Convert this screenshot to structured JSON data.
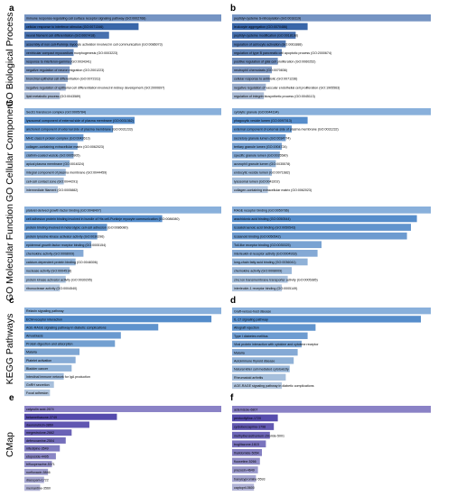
{
  "side_labels": {
    "bp": "GO Biological Process",
    "cc": "GO Cellular Component",
    "mf": "GO Molecular Function",
    "kegg": "KEGG Pathways",
    "cmap": "CMap"
  },
  "colors": {
    "bp": "#2b5ba3",
    "cc": "#4a86c8",
    "mf": "#4a86c8",
    "kegg": "#4a86c8",
    "cmap": "#4b3fa8"
  },
  "chart_data": [
    {
      "panel": "a",
      "type": "bar",
      "group": "bp",
      "categories": [
        "immune response-regulating cell surface receptor signaling pathway (GO:0002768)",
        "cellular response to interferon stimulus (GO:0071346)",
        "neural filament cell differentiation (GO:0007418)",
        "assembly of non cell-Purkinje myocyte activation involved in cell communication (GO:0086073)",
        "ventricular compact myocardium morphogenesis (GO:0003223)",
        "response to interferon-gamma (GO:0034341)",
        "negative regulation of neuron migration (GO:2001223)",
        "bronchial epithelial cell differentiation (GO:0072311)",
        "negative regulation of epithelial cell differentiation involved in kidney development (GO:2000697)",
        "lipid metabolic process (GO:0043589)"
      ],
      "values": [
        1.0,
        0.58,
        0.43,
        0.27,
        0.25,
        0.24,
        0.23,
        0.22,
        0.21,
        0.18
      ]
    },
    {
      "panel": "b",
      "type": "bar",
      "group": "bp",
      "categories": [
        "peptidyl-cysteine S-nitrosylation (GO:0018119)",
        "leukocyte aggregation (GO:0070486)",
        "peptidyl-cysteine modification (GO:0018198)",
        "regulation of astrocyte activation (GO:0061888)",
        "regulation of type B pancreatic cell apoptotic process (GO:2000674)",
        "positive regulation of glial cell proliferation (GO:0060252)",
        "neutrophil chemotaxis (GO:0070836)",
        "cellular response to antibiotic (GO:0071236)",
        "negative regulation of vascular endothelial cell proliferation (GO:1905563)",
        "regulation of integrin biosynthetic process (GO:0045113)"
      ],
      "values": [
        1.0,
        0.38,
        0.32,
        0.27,
        0.25,
        0.23,
        0.2,
        0.19,
        0.17,
        0.16
      ]
    },
    {
      "panel": "",
      "type": "bar",
      "group": "cc",
      "categories": [
        "Sec61 translocon complex (GO:0005784)",
        "lysosomal component of external side of plasma membrane (GO:0031362)",
        "anchored component of external side of plasma membrane (GO:0031233)",
        "MHC class II protein complex (GO:0042613)",
        "collagen-containing extracellular matrix (GO:0062023)",
        "clathrin-coated vesicle (GO:0005905)",
        "apical plasma membrane (GO:0016324)",
        "integral component of plasma membrane (GO:0044459)",
        "cell-cell contact zone (GO:0044291)",
        "intermediate filament (GO:0005882)"
      ],
      "values": [
        1.0,
        0.56,
        0.45,
        0.3,
        0.27,
        0.25,
        0.23,
        0.21,
        0.2,
        0.17
      ]
    },
    {
      "panel": "",
      "type": "bar",
      "group": "cc",
      "categories": [
        "cytolytic granule (GO:0044194)",
        "phagocytic vesicle lumen (GO:0097013)",
        "external component of external side of plasma membrane (GO:0031232)",
        "secretory granule lumen (GO:0034774)",
        "tertiary granule lumen (GO:1904724)",
        "specific granule lumen (GO:0035580)",
        "azurophil granule lumen (GO:0035578)",
        "endocytic vesicle lumen (GO:0071682)",
        "lysosomal lumen (GO:0043202)",
        "collagen-containing extracellular matrix (GO:0062023)"
      ],
      "values": [
        1.0,
        0.38,
        0.3,
        0.27,
        0.25,
        0.24,
        0.22,
        0.2,
        0.19,
        0.18
      ]
    },
    {
      "panel": "",
      "type": "bar",
      "group": "mf",
      "categories": [
        "platelet-derived growth factor binding (GO:0048407)",
        "cell adhesion protein binding involved in bundle of His cell-Purkinje myocyte communication (GO:0086080)",
        "protein binding involved in heterotypic cell-cell adhesion (GO:0086080)",
        "protein tyrosine kinase activator activity (GO:0030296)",
        "epidermal growth factor receptor binding (GO:0005154)",
        "chemokine activity (GO:0008009)",
        "calcium-dependent protein binding (GO:0048306)",
        "nuclease activity (GO:0004518)",
        "protein kinase activator activity (GO:0030295)",
        "ribonuclease activity (GO:0004540)"
      ],
      "values": [
        1.0,
        0.7,
        0.42,
        0.37,
        0.34,
        0.3,
        0.26,
        0.23,
        0.21,
        0.18
      ]
    },
    {
      "panel": "",
      "type": "bar",
      "group": "mf",
      "categories": [
        "RAGE receptor binding (GO:0050786)",
        "arachidonic acid binding (GO:0050544)",
        "icosatetraenoic acid binding (GO:0050543)",
        "icosanoid binding (GO:0050542)",
        "Toll-like receptor binding (GO:0035325)",
        "interleukin-8 receptor activity (GO:0004918)",
        "long-chain fatty acid binding (GO:0036041)",
        "chemokine activity (GO:0008009)",
        "zinc ion transmembrane transporter activity (GO:0005385)",
        "interleukin-1 receptor binding (GO:0005149)"
      ],
      "values": [
        1.0,
        0.93,
        0.9,
        0.88,
        0.45,
        0.43,
        0.38,
        0.3,
        0.28,
        0.25
      ]
    },
    {
      "panel": "c",
      "type": "bar",
      "group": "kegg",
      "categories": [
        "Relaxin signaling pathway",
        "ECM-receptor interaction",
        "AGE-RAGE signaling pathway in diabetic complications",
        "Amoebiasis",
        "Protein digestion and absorption",
        "Malaria",
        "Platelet activation",
        "Bladder cancer",
        "Intestinal immune network for IgA production",
        "GnRH secretion",
        "Focal adhesion"
      ],
      "values": [
        1.0,
        0.95,
        0.68,
        0.49,
        0.46,
        0.28,
        0.26,
        0.24,
        0.2,
        0.15,
        0.13
      ]
    },
    {
      "panel": "d",
      "type": "bar",
      "group": "kegg",
      "categories": [
        "Graft-versus-host disease",
        "IL-17 signaling pathway",
        "Allograft rejection",
        "Type I diabetes mellitus",
        "Viral protein interaction with cytokine and cytokine receptor",
        "Malaria",
        "Autoimmune thyroid disease",
        "Natural killer cell mediated cytotoxicity",
        "Rheumatoid arthritis",
        "AGE-RAGE signaling pathway in diabetic complications"
      ],
      "values": [
        1.0,
        0.95,
        0.42,
        0.38,
        0.35,
        0.33,
        0.31,
        0.29,
        0.27,
        0.25
      ]
    },
    {
      "panel": "e",
      "type": "bar",
      "group": "cmap",
      "categories": [
        "calyculin acid-2674",
        "betamethasone-3749",
        "daunorubicin-3869",
        "megestrolone-2662",
        "deferoxamine-2504",
        "nifedipine-3549",
        "etoposide-4495",
        "trifluoperazine-5371",
        "norfloxacin-5846",
        "diazepam-1722",
        "memantine-3560"
      ],
      "values": [
        1.0,
        0.47,
        0.33,
        0.24,
        0.21,
        0.18,
        0.16,
        0.14,
        0.12,
        0.1,
        0.08
      ]
    },
    {
      "panel": "f",
      "type": "bar",
      "group": "cmap",
      "categories": [
        "astemizole-6807",
        "pentoxifylline-1720",
        "cyclobenzaprine-1798",
        "methylbenzethonium chloride-5001",
        "troglitazone-1615",
        "thalidomide-5054",
        "fluoxetine-5266",
        "prazosin-4649",
        "tranylcypromine-5593",
        "captopril-5600"
      ],
      "values": [
        1.0,
        0.23,
        0.21,
        0.19,
        0.17,
        0.15,
        0.14,
        0.13,
        0.12,
        0.11
      ]
    }
  ]
}
